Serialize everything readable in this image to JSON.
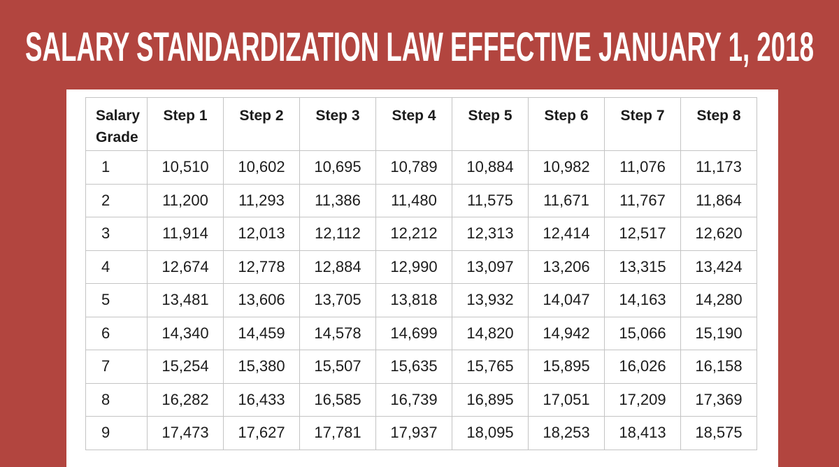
{
  "title": "SALARY STANDARDIZATION LAW EFFECTIVE JANUARY 1, 2018",
  "table": {
    "headers": [
      "Salary Grade",
      "Step 1",
      "Step 2",
      "Step 3",
      "Step 4",
      "Step 5",
      "Step 6",
      "Step 7",
      "Step 8"
    ],
    "rows": [
      {
        "grade": "1",
        "steps": [
          "10,510",
          "10,602",
          "10,695",
          "10,789",
          "10,884",
          "10,982",
          "11,076",
          "11,173"
        ]
      },
      {
        "grade": "2",
        "steps": [
          "11,200",
          "11,293",
          "11,386",
          "11,480",
          "11,575",
          "11,671",
          "11,767",
          "11,864"
        ]
      },
      {
        "grade": "3",
        "steps": [
          "11,914",
          "12,013",
          "12,112",
          "12,212",
          "12,313",
          "12,414",
          "12,517",
          "12,620"
        ]
      },
      {
        "grade": "4",
        "steps": [
          "12,674",
          "12,778",
          "12,884",
          "12,990",
          "13,097",
          "13,206",
          "13,315",
          "13,424"
        ]
      },
      {
        "grade": "5",
        "steps": [
          "13,481",
          "13,606",
          "13,705",
          "13,818",
          "13,932",
          "14,047",
          "14,163",
          "14,280"
        ]
      },
      {
        "grade": "6",
        "steps": [
          "14,340",
          "14,459",
          "14,578",
          "14,699",
          "14,820",
          "14,942",
          "15,066",
          "15,190"
        ]
      },
      {
        "grade": "7",
        "steps": [
          "15,254",
          "15,380",
          "15,507",
          "15,635",
          "15,765",
          "15,895",
          "16,026",
          "16,158"
        ]
      },
      {
        "grade": "8",
        "steps": [
          "16,282",
          "16,433",
          "16,585",
          "16,739",
          "16,895",
          "17,051",
          "17,209",
          "17,369"
        ]
      },
      {
        "grade": "9",
        "steps": [
          "17,473",
          "17,627",
          "17,781",
          "17,937",
          "18,095",
          "18,253",
          "18,413",
          "18,575"
        ]
      }
    ]
  },
  "colors": {
    "background_red": "#b2453f",
    "panel_white": "#ffffff",
    "table_border_gray": "#c4c4c4",
    "text_dark": "#1c1c1c",
    "title_white": "#ffffff"
  }
}
